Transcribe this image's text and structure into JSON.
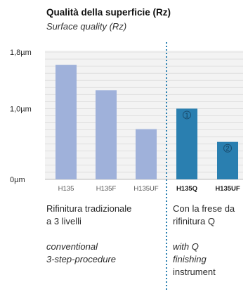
{
  "chart_data": {
    "type": "bar",
    "title": "Qualità della superficie (Rz)",
    "subtitle": "Surface quality (Rz)",
    "y_ticks": [
      {
        "value": 0,
        "label": "0µm"
      },
      {
        "value": 1.0,
        "label": "1,0µm"
      },
      {
        "value": 1.8,
        "label": "1,8µm"
      }
    ],
    "ylim": [
      0,
      1.8
    ],
    "grid": true,
    "groups": [
      {
        "id": "conventional",
        "color": "#9fb1da",
        "bars": [
          {
            "label": "H135",
            "value": 1.62,
            "marker": ""
          },
          {
            "label": "H135F",
            "value": 1.26,
            "marker": ""
          },
          {
            "label": "H135UF",
            "value": 0.71,
            "marker": ""
          }
        ],
        "caption_it": [
          "Rifinitura tradizionale",
          "a 3 livelli"
        ],
        "caption_en": [
          "conventional",
          "3-step-procedure"
        ]
      },
      {
        "id": "q",
        "color": "#2a7fb0",
        "bars": [
          {
            "label": "H135Q",
            "value": 1.0,
            "marker": "1"
          },
          {
            "label": "H135UF",
            "value": 0.53,
            "marker": "2"
          }
        ],
        "caption_it": [
          "Con la frese da",
          "rifinitura Q"
        ],
        "caption_en": [
          "with Q",
          "finishing",
          "instrument"
        ]
      }
    ]
  }
}
